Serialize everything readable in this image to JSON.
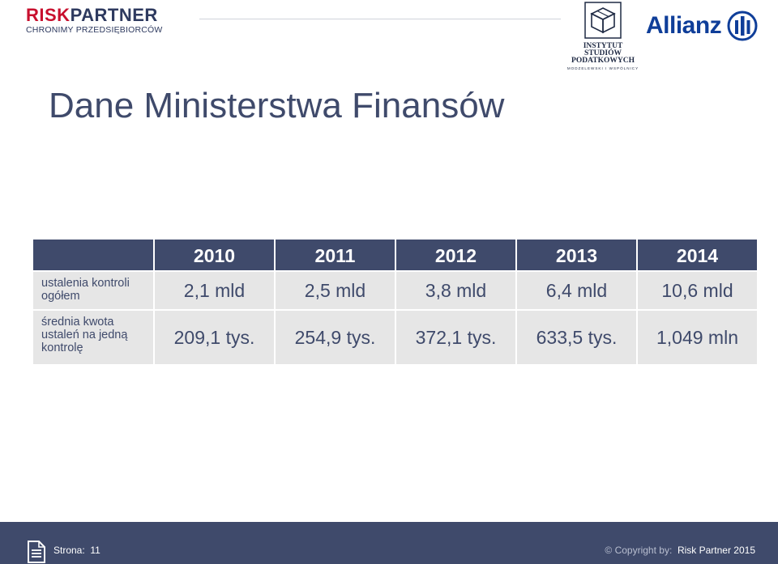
{
  "header": {
    "risk_partner": {
      "brand_part1": "RISK",
      "brand_part2": "PARTNER",
      "tagline": "CHRONIMY PRZEDSIĘBIORCÓW"
    },
    "isp": {
      "line1": "INSTYTUT",
      "line2": "STUDIÓW",
      "line3": "PODATKOWYCH",
      "sub": "MODZELEWSKI I WSPÓLNICY"
    },
    "allianz": {
      "word": "Allianz"
    }
  },
  "slide": {
    "title": "Dane Ministerstwa Finansów"
  },
  "table": {
    "years": [
      "2010",
      "2011",
      "2012",
      "2013",
      "2014"
    ],
    "rows": [
      {
        "label": "ustalenia kontroli ogółem",
        "values": [
          "2,1 mld",
          "2,5 mld",
          "3,8 mld",
          "6,4 mld",
          "10,6 mld"
        ]
      },
      {
        "label": "średnia kwota ustaleń na jedną kontrolę",
        "values": [
          "209,1 tys.",
          "254,9 tys.",
          "372,1 tys.",
          "633,5 tys.",
          "1,049 mln"
        ]
      }
    ]
  },
  "footer": {
    "page_label": "Strona:",
    "page_number": "11",
    "copyright_prefix": "© Copyright by:",
    "copyright_owner": "Risk Partner 2015"
  },
  "colors": {
    "navy": "#3f4a6b",
    "cell_gray": "#e6e6e6",
    "brand_red": "#c8102e",
    "allianz_blue": "#0f3e99"
  }
}
